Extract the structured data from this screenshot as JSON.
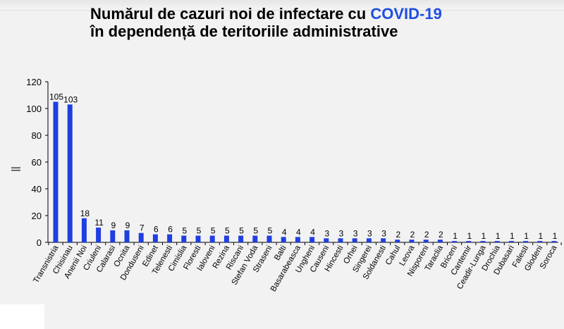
{
  "title": {
    "line1_prefix": "Numărul de cazuri noi de infectare cu ",
    "line1_highlight": "COVID-19",
    "line2": "în dependență de teritoriile administrative"
  },
  "colors": {
    "bar": "#1f3fe0",
    "axis": "#000000",
    "background": "#f2f2f2",
    "title_highlight": "#1f4ee0"
  },
  "chart_data": {
    "type": "bar",
    "title": "Numărul de cazuri noi de infectare cu COVID-19 în dependență de teritoriile administrative",
    "ylabel": "||",
    "xlabel": "",
    "ylim": [
      0,
      120
    ],
    "yticks": [
      0,
      20,
      40,
      60,
      80,
      100,
      120
    ],
    "grid": false,
    "legend": "none",
    "categories": [
      "Transnistria",
      "Chisinau",
      "Anenii Noi",
      "Criuleni",
      "Calarasi",
      "Ocnita",
      "Donduseni",
      "Edinet",
      "Telenesti",
      "Cimislia",
      "Floresti",
      "Ialoveni",
      "Rezina",
      "Riscani",
      "Stefan Voda",
      "Straseni",
      "Balti",
      "Basarabeasca",
      "Ungheni",
      "Causeni",
      "Hincesti",
      "Orhei",
      "Singerei",
      "Soldanesti",
      "Cahul",
      "Leova",
      "Nisporeni",
      "Taraclia",
      "Briceni",
      "Cantemir",
      "Ceadir-Lunga",
      "Drochia",
      "Dubasari",
      "Falesti",
      "Glodeni",
      "Soroca"
    ],
    "values": [
      105,
      103,
      18,
      11,
      9,
      9,
      7,
      6,
      6,
      5,
      5,
      5,
      5,
      5,
      5,
      5,
      4,
      4,
      4,
      3,
      3,
      3,
      3,
      3,
      2,
      2,
      2,
      2,
      1,
      1,
      1,
      1,
      1,
      1,
      1,
      1
    ]
  }
}
